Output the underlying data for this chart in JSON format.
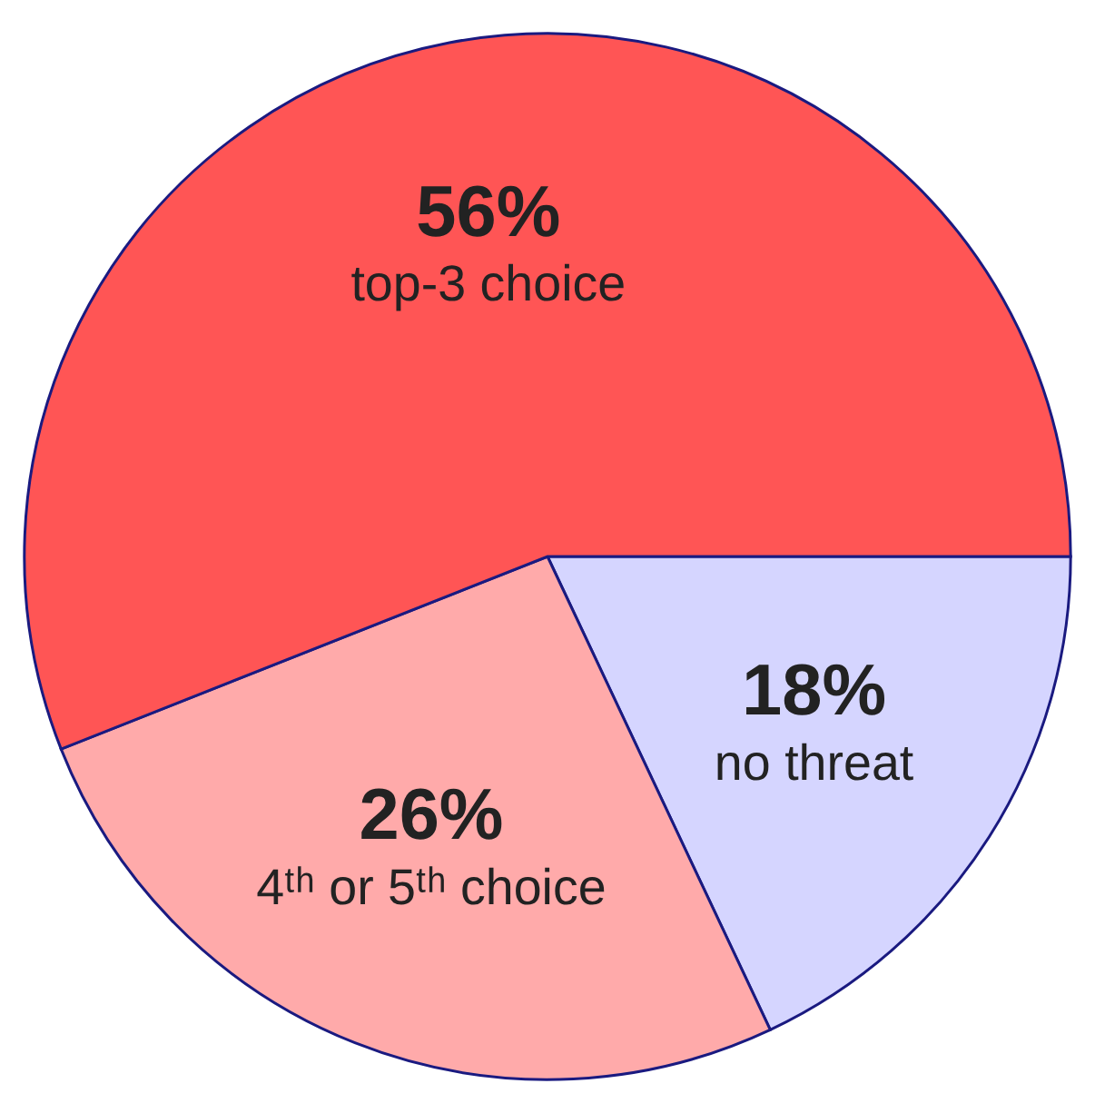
{
  "chart_data": {
    "type": "pie",
    "categories": [
      "no threat",
      "4ᵗʰ or 5ᵗʰ choice",
      "top-3 choice"
    ],
    "values": [
      18,
      26,
      56
    ],
    "value_labels": [
      "18%",
      "26%",
      "56%"
    ],
    "colors": [
      "#d5d5ff",
      "#ffaaaa",
      "#ff5555"
    ],
    "data_labels": true,
    "legend": false
  }
}
